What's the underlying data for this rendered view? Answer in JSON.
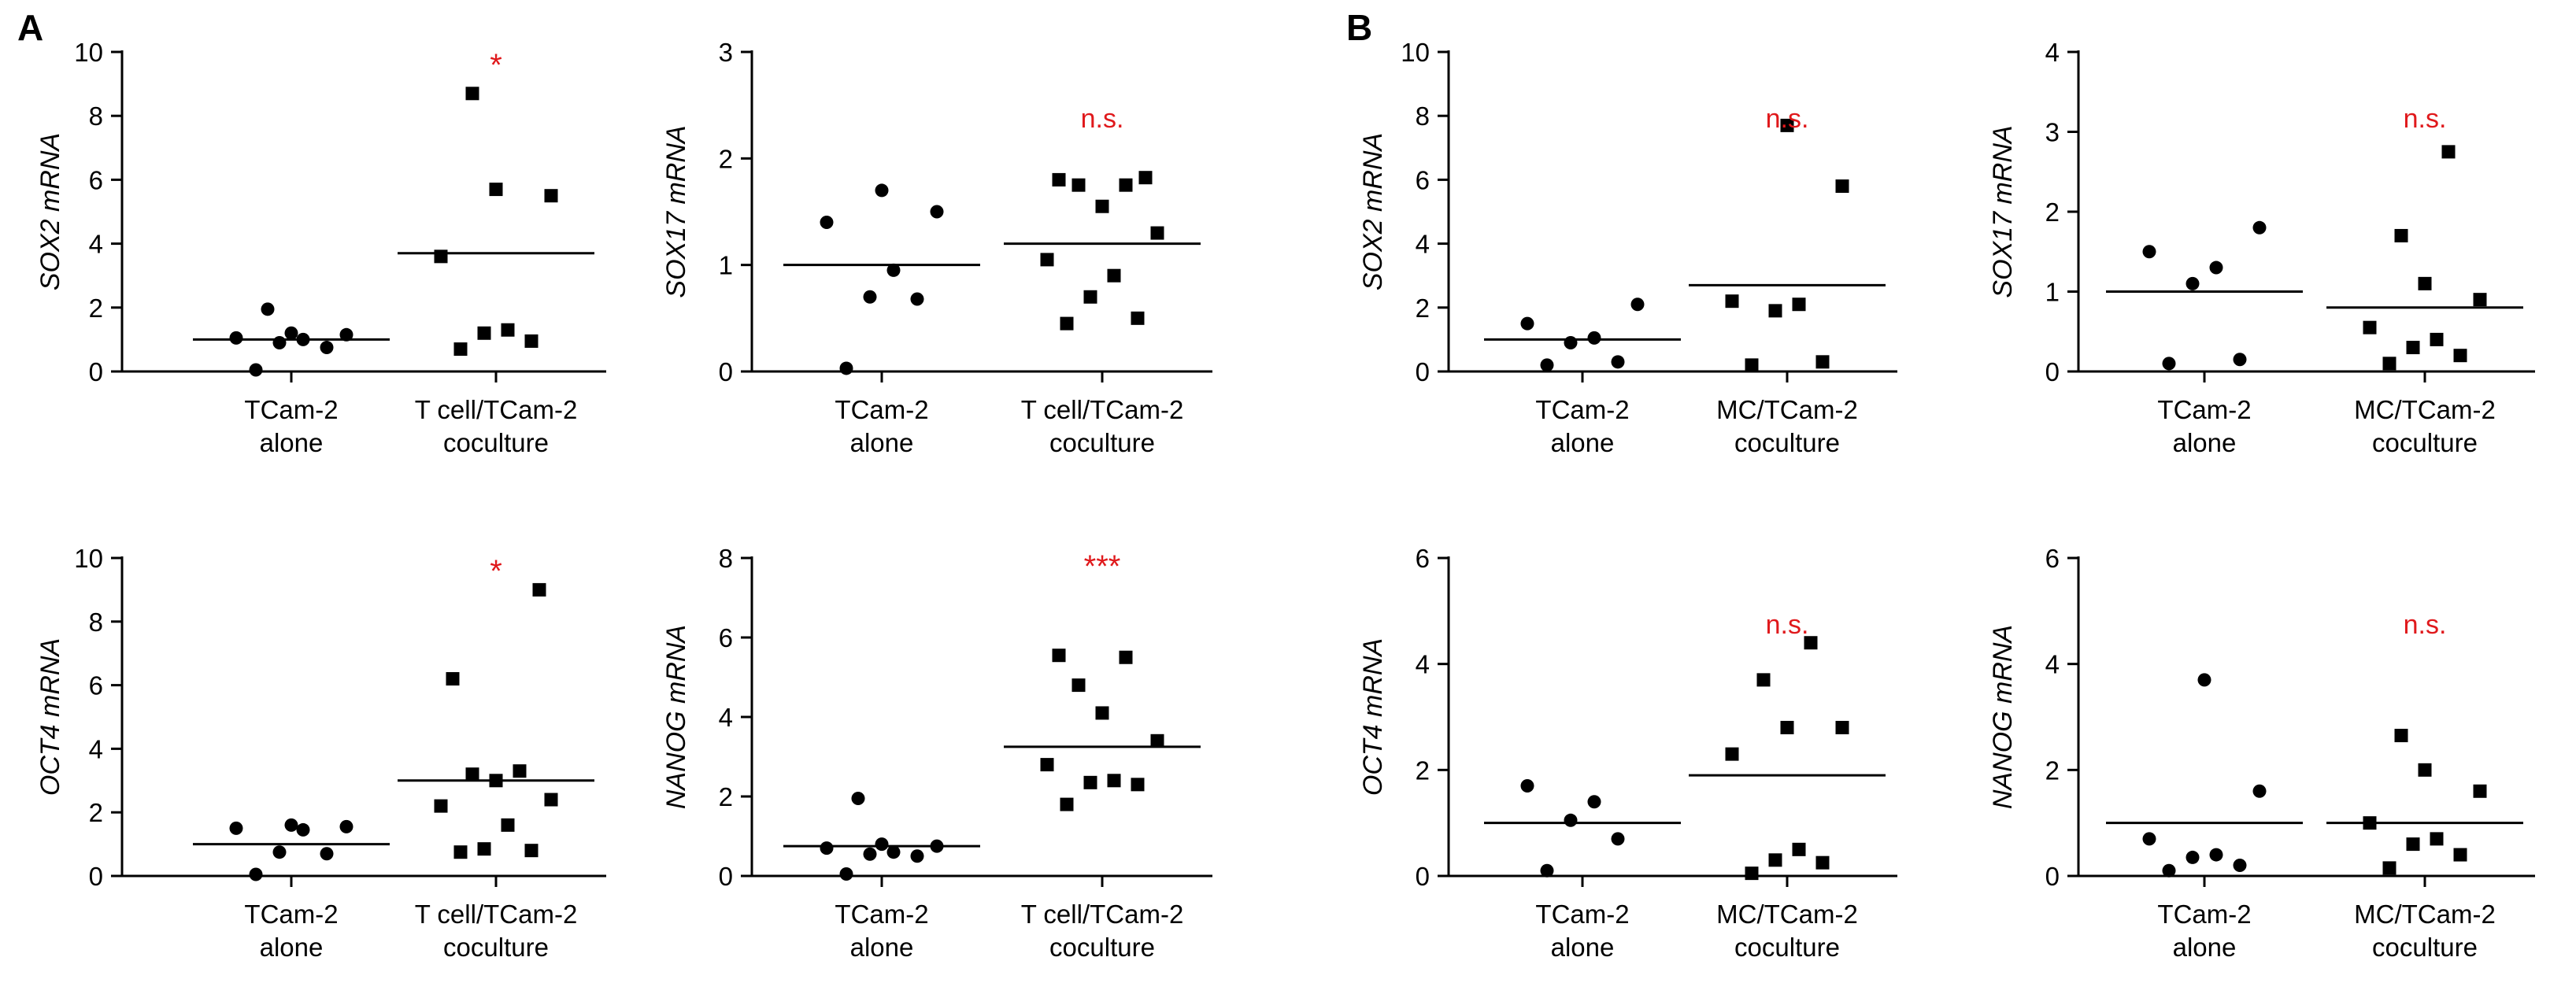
{
  "panels": {
    "a": "A",
    "b": "B"
  },
  "colors": {
    "significance": "#e0191c",
    "ink": "#000000"
  },
  "chart_data": [
    {
      "type": "scatter",
      "panel": "A",
      "ylabel": "SOX2 mRNA",
      "ylim": [
        0,
        10
      ],
      "yticks": [
        0,
        2,
        4,
        6,
        8,
        10
      ],
      "groups": [
        {
          "label": [
            "TCam-2",
            "alone"
          ],
          "marker": "circle",
          "values": [
            0.05,
            0.75,
            0.9,
            1.0,
            1.05,
            1.15,
            1.2,
            1.95
          ],
          "mean": 1.0
        },
        {
          "label": [
            "T cell/TCam-2",
            "coculture"
          ],
          "marker": "square",
          "values": [
            0.7,
            0.95,
            1.2,
            1.3,
            3.6,
            5.5,
            5.7,
            8.7
          ],
          "mean": 3.7
        }
      ],
      "significance": "*"
    },
    {
      "type": "scatter",
      "panel": "A",
      "ylabel": "SOX17 mRNA",
      "ylim": [
        0,
        3
      ],
      "yticks": [
        0,
        1,
        2,
        3
      ],
      "groups": [
        {
          "label": [
            "TCam-2",
            "alone"
          ],
          "marker": "circle",
          "values": [
            0.03,
            0.68,
            0.7,
            0.95,
            1.4,
            1.5,
            1.7
          ],
          "mean": 1.0
        },
        {
          "label": [
            "T cell/TCam-2",
            "coculture"
          ],
          "marker": "square",
          "values": [
            0.45,
            0.5,
            0.7,
            0.9,
            1.05,
            1.3,
            1.55,
            1.75,
            1.75,
            1.8,
            1.82
          ],
          "mean": 1.2
        }
      ],
      "significance": "n.s."
    },
    {
      "type": "scatter",
      "panel": "B",
      "ylabel": "SOX2 mRNA",
      "ylim": [
        0,
        10
      ],
      "yticks": [
        0,
        2,
        4,
        6,
        8,
        10
      ],
      "groups": [
        {
          "label": [
            "TCam-2",
            "alone"
          ],
          "marker": "circle",
          "values": [
            0.2,
            0.3,
            0.9,
            1.05,
            1.5,
            2.1
          ],
          "mean": 1.0
        },
        {
          "label": [
            "MC/TCam-2",
            "coculture"
          ],
          "marker": "square",
          "values": [
            0.2,
            0.3,
            1.9,
            2.1,
            2.2,
            5.8,
            7.7
          ],
          "mean": 2.7
        }
      ],
      "significance": "n.s."
    },
    {
      "type": "scatter",
      "panel": "B",
      "ylabel": "SOX17 mRNA",
      "ylim": [
        0,
        4
      ],
      "yticks": [
        0,
        1,
        2,
        3,
        4
      ],
      "groups": [
        {
          "label": [
            "TCam-2",
            "alone"
          ],
          "marker": "circle",
          "values": [
            0.1,
            0.15,
            1.1,
            1.3,
            1.5,
            1.8
          ],
          "mean": 1.0
        },
        {
          "label": [
            "MC/TCam-2",
            "coculture"
          ],
          "marker": "square",
          "values": [
            0.1,
            0.2,
            0.3,
            0.4,
            0.55,
            0.9,
            1.1,
            1.7,
            2.75
          ],
          "mean": 0.8
        }
      ],
      "significance": "n.s."
    },
    {
      "type": "scatter",
      "panel": "A",
      "ylabel": "OCT4 mRNA",
      "ylim": [
        0,
        10
      ],
      "yticks": [
        0,
        2,
        4,
        6,
        8,
        10
      ],
      "groups": [
        {
          "label": [
            "TCam-2",
            "alone"
          ],
          "marker": "circle",
          "values": [
            0.05,
            0.7,
            0.75,
            1.45,
            1.5,
            1.55,
            1.6
          ],
          "mean": 1.0
        },
        {
          "label": [
            "T cell/TCam-2",
            "coculture"
          ],
          "marker": "square",
          "values": [
            0.75,
            0.8,
            0.85,
            1.6,
            2.2,
            2.4,
            3.0,
            3.2,
            3.3,
            6.2,
            9.0
          ],
          "mean": 3.0
        }
      ],
      "significance": "*"
    },
    {
      "type": "scatter",
      "panel": "A",
      "ylabel": "NANOG mRNA",
      "ylim": [
        0,
        8
      ],
      "yticks": [
        0,
        2,
        4,
        6,
        8
      ],
      "groups": [
        {
          "label": [
            "TCam-2",
            "alone"
          ],
          "marker": "circle",
          "values": [
            0.05,
            0.5,
            0.55,
            0.6,
            0.7,
            0.75,
            0.8,
            1.95
          ],
          "mean": 0.75
        },
        {
          "label": [
            "T cell/TCam-2",
            "coculture"
          ],
          "marker": "square",
          "values": [
            1.8,
            2.3,
            2.35,
            2.4,
            2.8,
            3.4,
            4.1,
            4.8,
            5.5,
            5.55
          ],
          "mean": 3.25
        }
      ],
      "significance": "***"
    },
    {
      "type": "scatter",
      "panel": "B",
      "ylabel": "OCT4 mRNA",
      "ylim": [
        0,
        6
      ],
      "yticks": [
        0,
        2,
        4,
        6
      ],
      "groups": [
        {
          "label": [
            "TCam-2",
            "alone"
          ],
          "marker": "circle",
          "values": [
            0.1,
            0.7,
            1.05,
            1.4,
            1.7
          ],
          "mean": 1.0
        },
        {
          "label": [
            "MC/TCam-2",
            "coculture"
          ],
          "marker": "square",
          "values": [
            0.05,
            0.25,
            0.3,
            0.5,
            2.3,
            2.8,
            2.8,
            3.7,
            4.4
          ],
          "mean": 1.9
        }
      ],
      "significance": "n.s."
    },
    {
      "type": "scatter",
      "panel": "B",
      "ylabel": "NANOG mRNA",
      "ylim": [
        0,
        6
      ],
      "yticks": [
        0,
        2,
        4,
        6
      ],
      "groups": [
        {
          "label": [
            "TCam-2",
            "alone"
          ],
          "marker": "circle",
          "values": [
            0.1,
            0.2,
            0.35,
            0.4,
            0.7,
            1.6,
            3.7
          ],
          "mean": 1.0
        },
        {
          "label": [
            "MC/TCam-2",
            "coculture"
          ],
          "marker": "square",
          "values": [
            0.15,
            0.4,
            0.6,
            0.7,
            1.0,
            1.6,
            2.0,
            2.65
          ],
          "mean": 1.0
        }
      ],
      "significance": "n.s."
    }
  ]
}
